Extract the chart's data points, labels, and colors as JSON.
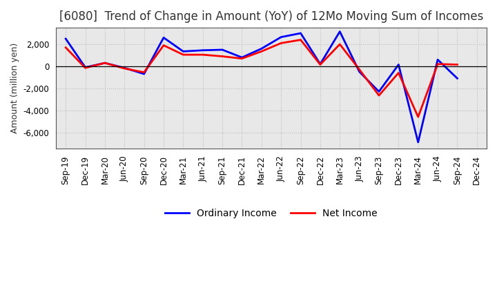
{
  "title": "[6080]  Trend of Change in Amount (YoY) of 12Mo Moving Sum of Incomes",
  "ylabel": "Amount (million yen)",
  "labels": [
    "Sep-19",
    "Dec-19",
    "Mar-20",
    "Jun-20",
    "Sep-20",
    "Dec-20",
    "Mar-21",
    "Jun-21",
    "Sep-21",
    "Dec-21",
    "Mar-22",
    "Jun-22",
    "Sep-22",
    "Dec-22",
    "Mar-23",
    "Jun-23",
    "Sep-23",
    "Dec-23",
    "Mar-24",
    "Jun-24",
    "Sep-24",
    "Dec-24"
  ],
  "ordinary_income": [
    2500,
    -100,
    300,
    -150,
    -700,
    2600,
    1350,
    1450,
    1500,
    800,
    1600,
    2650,
    3000,
    200,
    3150,
    -500,
    -2300,
    150,
    -6900,
    600,
    -1100,
    null
  ],
  "net_income": [
    1700,
    -150,
    300,
    -200,
    -550,
    1900,
    1050,
    1050,
    900,
    700,
    1350,
    2100,
    2400,
    150,
    2000,
    -300,
    -2650,
    -600,
    -4600,
    200,
    150,
    null
  ],
  "ordinary_color": "#0000FF",
  "net_color": "#FF0000",
  "background_color": "#FFFFFF",
  "plot_bg_color": "#E8E8E8",
  "grid_color": "#BBBBBB",
  "zero_line_color": "#000000",
  "ylim": [
    -7500,
    3500
  ],
  "yticks": [
    -6000,
    -4000,
    -2000,
    0,
    2000
  ],
  "title_fontsize": 12,
  "axis_fontsize": 9,
  "tick_fontsize": 8.5,
  "legend_fontsize": 10,
  "line_width": 2.0
}
